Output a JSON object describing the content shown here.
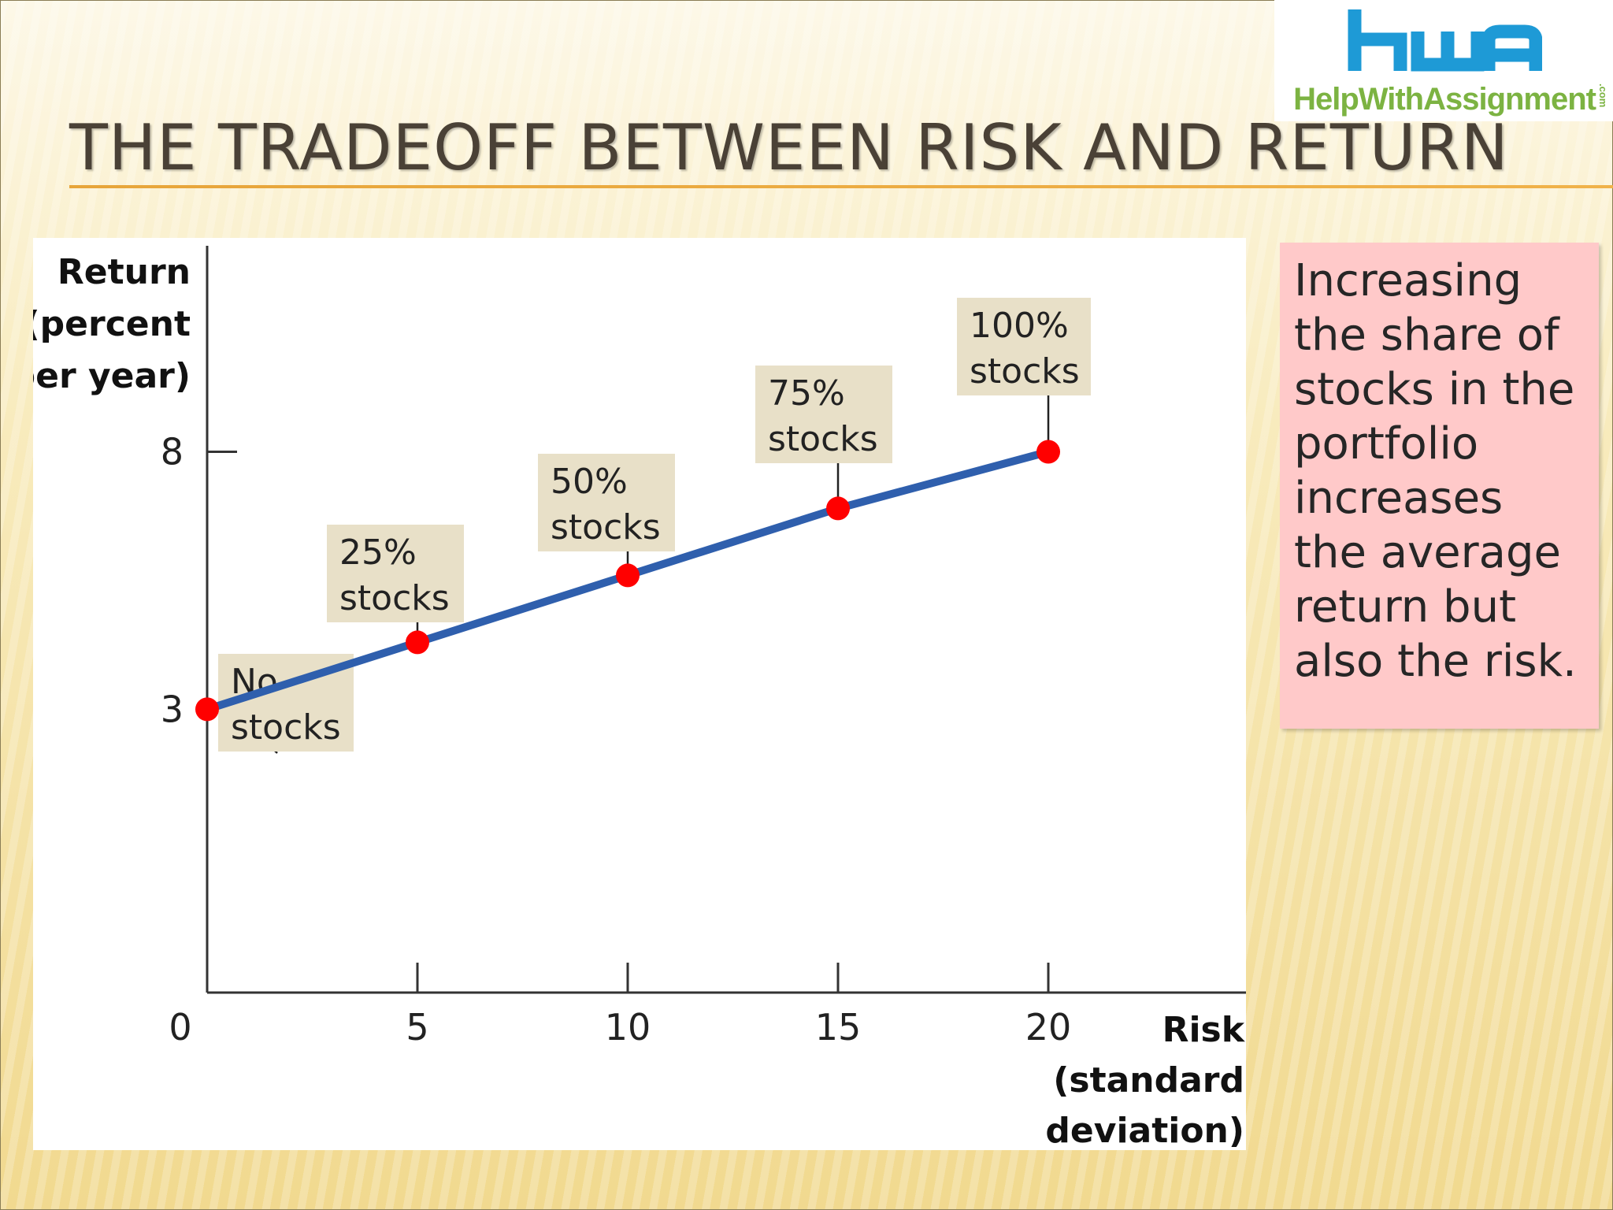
{
  "slide": {
    "title": "THE TRADEOFF BETWEEN RISK AND RETURN",
    "note": "Increasing the share of stocks in the portfolio increases the average return but also the risk."
  },
  "logo": {
    "text": "HelpWithAssignment",
    "suffix": ".com",
    "colors": {
      "blue": "#1e9ad6",
      "green": "#7cb342"
    }
  },
  "chart_data": {
    "type": "line",
    "ylabel": "Return (percent per year)",
    "ylabel_lines": [
      "Return",
      "(percent",
      "per year)"
    ],
    "xlabel": "Risk (standard deviation)",
    "xlabel_lines": [
      "Risk",
      "(standard",
      "deviation)"
    ],
    "x_ticks": [
      "0",
      "5",
      "10",
      "15",
      "20"
    ],
    "y_ticks": [
      "3",
      "8"
    ],
    "xlim": [
      0,
      24.7
    ],
    "ylim": [
      -2.5,
      12
    ],
    "series": [
      {
        "x": [
          0,
          5,
          10,
          15,
          20
        ],
        "y": [
          3,
          4.3,
          5.6,
          6.9,
          8
        ],
        "line_color": "#2f5fad",
        "point_color": "#ff0000"
      }
    ],
    "annotations": [
      {
        "lines": [
          "No",
          "stocks"
        ]
      },
      {
        "lines": [
          "25%",
          "stocks"
        ]
      },
      {
        "lines": [
          "50%",
          "stocks"
        ]
      },
      {
        "lines": [
          "75%",
          "stocks"
        ]
      },
      {
        "lines": [
          "100%",
          "stocks"
        ]
      }
    ],
    "annotation_bg": "#e8e0c8",
    "grid": false,
    "legend": "none"
  }
}
